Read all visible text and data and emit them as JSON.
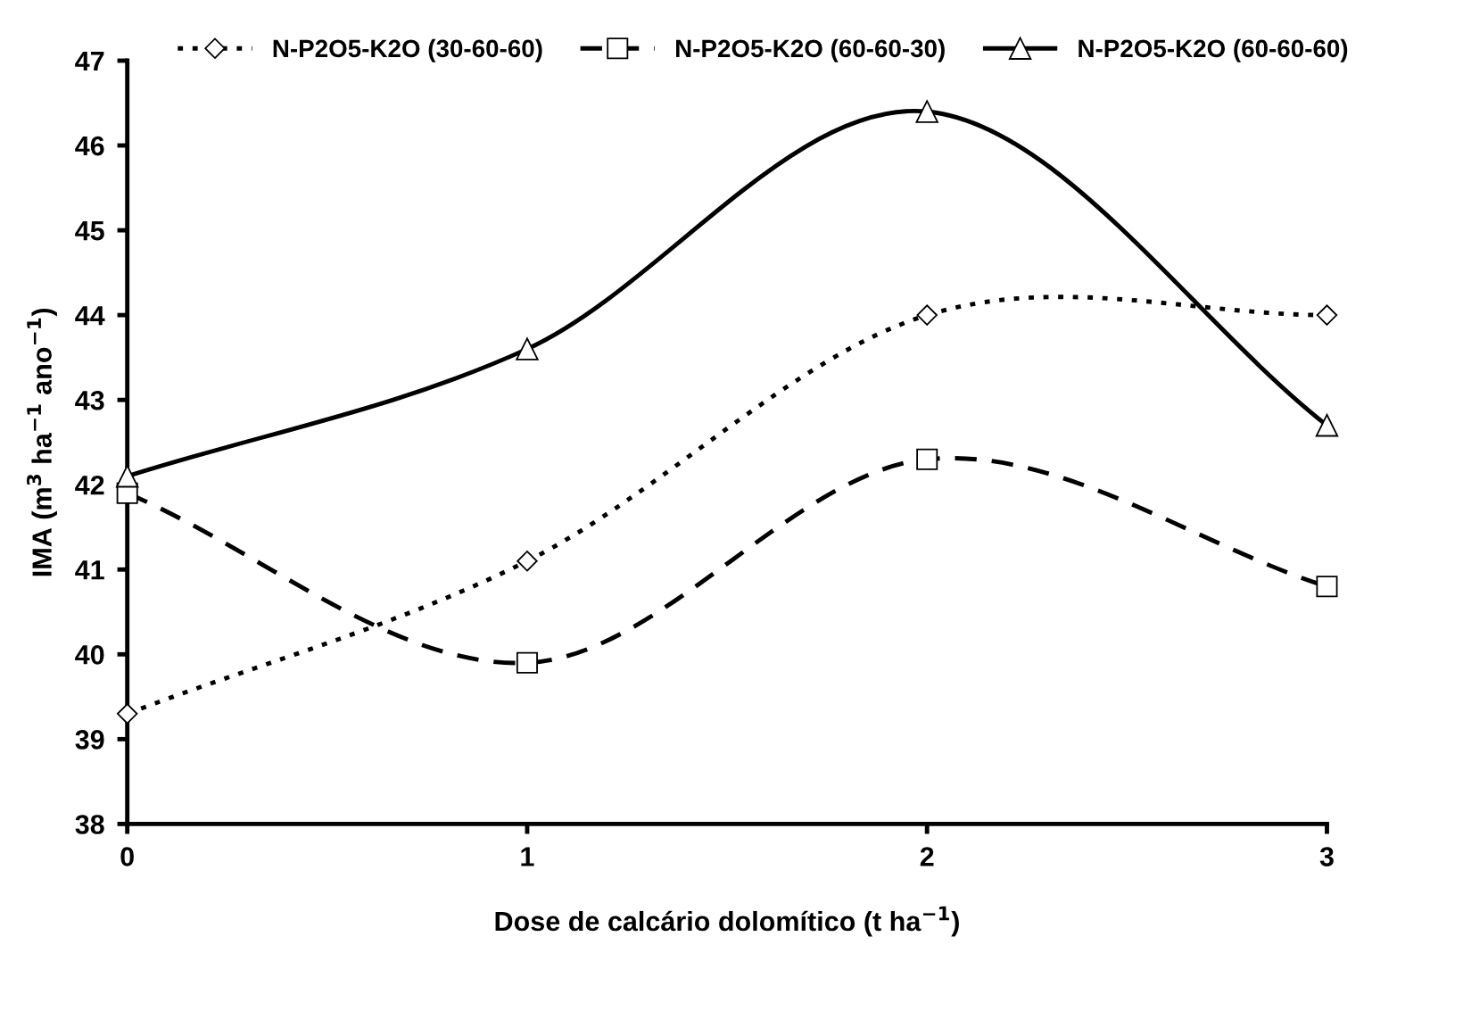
{
  "chart_data": {
    "type": "line",
    "xlabel": "Dose de calcário dolomítico (t ha$^{−1}$)",
    "ylabel": "IMA (m$^{3}$ ha$^{−1}$ ano$^{−1}$)",
    "x": [
      0,
      1,
      2,
      3
    ],
    "series": [
      {
        "name": "N-P2O5-K2O (30-60-60)",
        "color": "#000000",
        "values": [
          39.3,
          41.1,
          44.0,
          44.0
        ],
        "marker": "diamond",
        "line_style": "dotted"
      },
      {
        "name": "N-P2O5-K2O (60-60-30)",
        "color": "#000000",
        "values": [
          41.9,
          39.9,
          42.3,
          40.8
        ],
        "marker": "square",
        "line_style": "dashed"
      },
      {
        "name": "N-P2O5-K2O (60-60-60)",
        "color": "#000000",
        "values": [
          42.1,
          43.6,
          46.4,
          42.7
        ],
        "marker": "triangle",
        "line_style": "solid"
      }
    ],
    "xlim": [
      0,
      3
    ],
    "xticks": [
      0,
      1,
      2,
      3
    ],
    "ylim": [
      38,
      47
    ],
    "yticks": [
      38,
      39,
      40,
      41,
      42,
      43,
      44,
      45,
      46,
      47
    ],
    "grid": false,
    "legend": "top"
  }
}
